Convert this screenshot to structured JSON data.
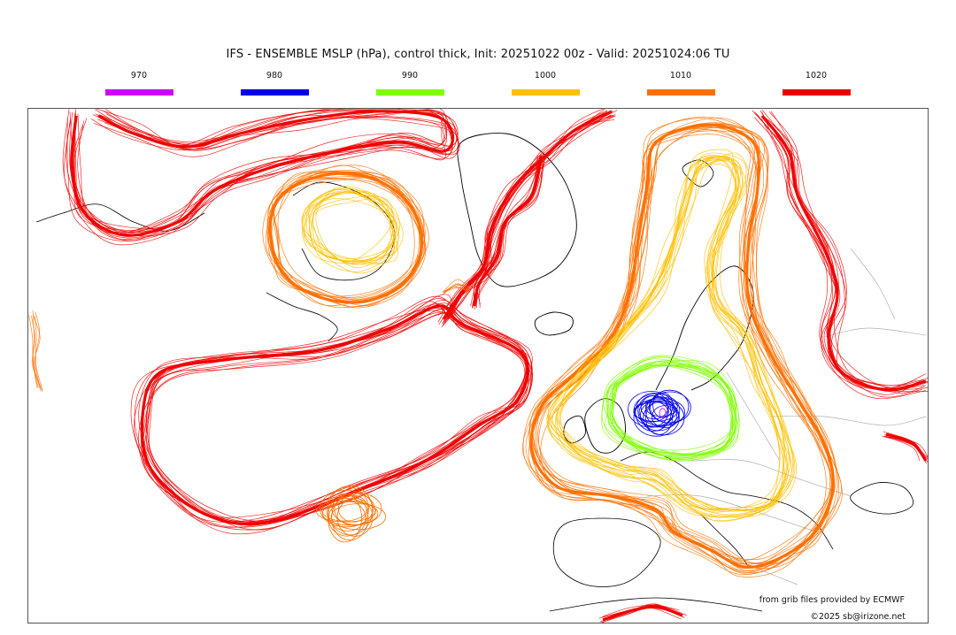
{
  "title": "IFS - ENSEMBLE MSLP (hPa), control thick, Init: 20251022 00z - Valid: 20251024:06 TU",
  "legend": [
    {
      "label": "970",
      "color": "#cc00ff"
    },
    {
      "label": "980",
      "color": "#0000ee"
    },
    {
      "label": "990",
      "color": "#7fff00"
    },
    {
      "label": "1000",
      "color": "#ffc000"
    },
    {
      "label": "1010",
      "color": "#ff7000"
    },
    {
      "label": "1020",
      "color": "#ee0000"
    }
  ],
  "credits": {
    "source": "from grib files provided by ECMWF",
    "copyright": "©2025 sb@irizone.net"
  },
  "map": {
    "contour_colors": {
      "c970": "#cc00ff",
      "c980": "#0000ee",
      "c990": "#7fff00",
      "c1000": "#ffc000",
      "c1010": "#ff7000",
      "c1020": "#ee0000"
    },
    "coastline_color": "#000000",
    "border_color": "#b0b0b0"
  }
}
